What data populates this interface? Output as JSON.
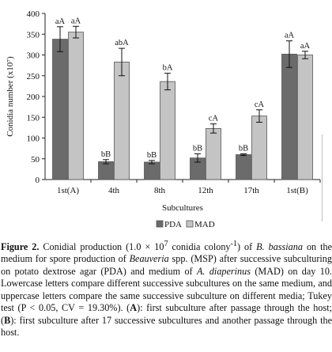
{
  "chart_data": {
    "type": "bar",
    "categories": [
      "1st(A)",
      "4th",
      "8th",
      "12th",
      "17th",
      "1st(B)"
    ],
    "series": [
      {
        "name": "PDA",
        "color": "#6b6b6b",
        "values": [
          338,
          43,
          42,
          52,
          60,
          302
        ],
        "errors": [
          30,
          5,
          4,
          10,
          2,
          32
        ],
        "labels": [
          "aA",
          "bB",
          "bB",
          "bB",
          "bB",
          "aA"
        ]
      },
      {
        "name": "MAD",
        "color": "#c4c4c4",
        "values": [
          355,
          283,
          236,
          123,
          153,
          300
        ],
        "errors": [
          14,
          33,
          20,
          11,
          15,
          9
        ],
        "labels": [
          "aA",
          "abA",
          "bA",
          "cA",
          "cA",
          "aA"
        ]
      }
    ],
    "title": "",
    "xlabel": "Subcultures",
    "ylabel": "Conidia number (x10⁷)",
    "ylim": [
      0,
      400
    ],
    "yticks": [
      0,
      50,
      100,
      150,
      200,
      250,
      300,
      350,
      400
    ],
    "grid": false,
    "legend_position": "bottom-center"
  },
  "caption": {
    "label": "Figure 2.",
    "t1": " Conidial production (1.0 × 10",
    "t1_sup": "7",
    "t2": " conidia colony",
    "t2_sup": "-1",
    "t3": ") of ",
    "species1": "B. bassiana",
    "t4": " on the medium for spore production of ",
    "genus": "Beauveria",
    "t5": " spp. (MSP) after successive subculturing on potato dextrose agar (PDA) and medium of ",
    "species2": "A. diaperinus",
    "t6": " (MAD) on day 10. Lowercase letters compare different successive subcultures on the same medium, and uppercase letters compare the same successive subculture on different media; Tukey test (P < 0.05, CV = 19.30%). (",
    "markA": "A",
    "t7": "): first subculture after passage through the host; (",
    "markB": "B",
    "t8": "): first subculture after 17 successive subcultures and another passage through the host."
  }
}
